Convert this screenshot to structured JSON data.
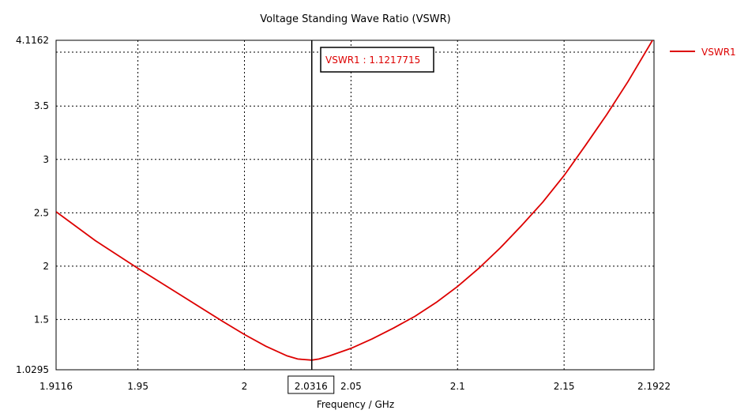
{
  "chart_data": {
    "type": "line",
    "title": "Voltage Standing Wave Ratio (VSWR)",
    "xlabel": "Frequency / GHz",
    "ylabel": "",
    "xlim": [
      1.9116,
      2.1922
    ],
    "ylim": [
      1.0295,
      4.1162
    ],
    "x_ticks": [
      "1.9116",
      "1.95",
      "2",
      "2.05",
      "2.1",
      "2.15",
      "2.1922"
    ],
    "y_ticks": [
      "1.0295",
      "1.5",
      "2",
      "2.5",
      "3",
      "3.5",
      "4.1162"
    ],
    "grid": true,
    "legend_position": "top-right",
    "series": [
      {
        "name": "VSWR1",
        "color": "#dd0000",
        "x": [
          1.9116,
          1.93,
          1.95,
          1.97,
          1.99,
          2.0,
          2.01,
          2.02,
          2.025,
          2.0316,
          2.035,
          2.04,
          2.05,
          2.06,
          2.07,
          2.08,
          2.09,
          2.1,
          2.11,
          2.12,
          2.13,
          2.14,
          2.15,
          2.16,
          2.17,
          2.18,
          2.1922
        ],
        "y": [
          2.51,
          2.24,
          1.98,
          1.73,
          1.48,
          1.36,
          1.25,
          1.16,
          1.13,
          1.12,
          1.13,
          1.16,
          1.23,
          1.32,
          1.42,
          1.53,
          1.66,
          1.81,
          1.98,
          2.17,
          2.38,
          2.6,
          2.85,
          3.13,
          3.42,
          3.73,
          4.14
        ]
      }
    ],
    "marker": {
      "label": "VSWR1 : 1.1217715",
      "x": 2.0316,
      "x_label": "2.0316",
      "y": 1.1217715
    }
  }
}
